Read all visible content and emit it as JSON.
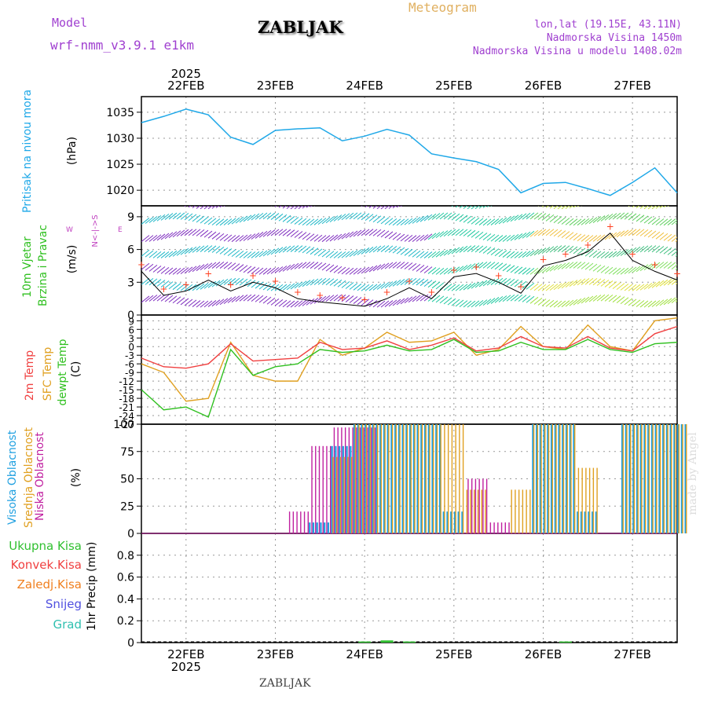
{
  "header": {
    "model_label": "Model",
    "model_name": "wrf-nmm_v3.9.1  e1km",
    "title": "ZABLJAK",
    "meteogram_label": "Meteogram",
    "coords": "lon,lat (19.15E, 43.11N)",
    "elevation": "Nadmorska Visina 1450m",
    "model_elevation": "Nadmorska Visina u modelu 1408.02m",
    "footer_title": "ZABLJAK",
    "watermark": "made by Angel"
  },
  "time_axis": {
    "year": "2025",
    "start": "2025-02-21T12:00",
    "end": "2025-02-27T12:00",
    "days": [
      "22FEB",
      "23FEB",
      "24FEB",
      "25FEB",
      "26FEB",
      "27FEB"
    ]
  },
  "colors": {
    "pressure": "#1fa8e8",
    "temp_2m": "#f04040",
    "sfc_temp": "#e0a020",
    "dewpt": "#30c020",
    "high_cloud": "#20a0e0",
    "mid_cloud": "#e0a020",
    "low_cloud": "#c020a0",
    "total_precip": "#30c030",
    "conv_precip": "#f04040",
    "frozen_precip": "#f08020",
    "snow": "#5050e0",
    "hail": "#30c0b0",
    "wind_gust_marker": "#ff4020"
  },
  "panels": {
    "pressure": {
      "ylabel": "Pritisak na nivou mora",
      "unit": "(hPa)"
    },
    "wind": {
      "ylabel_1": "10m Vjetar",
      "ylabel_2": "Brzina i Pravac",
      "unit": "(m/s)",
      "compass_ns": "N<-|->S",
      "compass_w": "W",
      "compass_e": "E"
    },
    "temperature": {
      "ylabel_1": "2m Temp",
      "ylabel_2": "SFC Temp",
      "ylabel_3": "dewpt Temp",
      "unit": "(C)"
    },
    "cloud": {
      "ylabel_1": "Visoka Oblacnost",
      "ylabel_2": "Srednja Oblacnost",
      "ylabel_3": "Niska Oblacnost",
      "unit": "(%)"
    },
    "precip": {
      "ylabel": "1hr Precip (mm)",
      "legend": [
        "Ukupna Kisa",
        "Konvek.Kisa",
        "Zaledj.Kisa",
        "Snijeg",
        "Grad"
      ]
    }
  },
  "chart_data": [
    {
      "type": "line",
      "name": "pressure",
      "ylim": [
        1017,
        1038
      ],
      "yticks": [
        1020,
        1025,
        1030,
        1035
      ],
      "grid": true,
      "x": [
        "2025-02-21T12:00",
        "2025-02-21T18:00",
        "2025-02-22T00:00",
        "2025-02-22T06:00",
        "2025-02-22T12:00",
        "2025-02-22T18:00",
        "2025-02-23T00:00",
        "2025-02-23T06:00",
        "2025-02-23T12:00",
        "2025-02-23T18:00",
        "2025-02-24T00:00",
        "2025-02-24T06:00",
        "2025-02-24T12:00",
        "2025-02-24T18:00",
        "2025-02-25T00:00",
        "2025-02-25T06:00",
        "2025-02-25T12:00",
        "2025-02-25T18:00",
        "2025-02-26T00:00",
        "2025-02-26T06:00",
        "2025-02-26T12:00",
        "2025-02-26T18:00",
        "2025-02-27T00:00",
        "2025-02-27T06:00",
        "2025-02-27T12:00"
      ],
      "values": [
        1033.0,
        1034.2,
        1035.6,
        1034.5,
        1030.2,
        1028.8,
        1031.5,
        1031.8,
        1032.0,
        1029.5,
        1030.4,
        1031.7,
        1030.6,
        1027.0,
        1026.2,
        1025.5,
        1024.0,
        1019.5,
        1021.3,
        1021.5,
        1020.3,
        1019.0,
        1021.5,
        1024.3,
        1019.5
      ]
    },
    {
      "type": "line",
      "name": "wind_speed",
      "ylim": [
        0,
        10
      ],
      "yticks": [
        0,
        3,
        6,
        9
      ],
      "grid": true,
      "x": [
        "2025-02-21T12:00",
        "2025-02-21T18:00",
        "2025-02-22T00:00",
        "2025-02-22T06:00",
        "2025-02-22T12:00",
        "2025-02-22T18:00",
        "2025-02-23T00:00",
        "2025-02-23T06:00",
        "2025-02-23T12:00",
        "2025-02-23T18:00",
        "2025-02-24T00:00",
        "2025-02-24T06:00",
        "2025-02-24T12:00",
        "2025-02-24T18:00",
        "2025-02-25T00:00",
        "2025-02-25T06:00",
        "2025-02-25T12:00",
        "2025-02-25T18:00",
        "2025-02-26T00:00",
        "2025-02-26T06:00",
        "2025-02-26T12:00",
        "2025-02-26T18:00",
        "2025-02-27T00:00",
        "2025-02-27T06:00",
        "2025-02-27T12:00"
      ],
      "values": [
        4.0,
        1.8,
        2.2,
        3.2,
        2.2,
        3.0,
        2.5,
        1.5,
        1.2,
        1.0,
        0.8,
        1.5,
        2.5,
        1.5,
        3.5,
        3.8,
        3.0,
        2.0,
        4.5,
        5.0,
        5.8,
        7.5,
        5.0,
        4.0,
        3.2
      ]
    },
    {
      "type": "line",
      "name": "temperature",
      "ylim": [
        -27,
        11
      ],
      "yticks": [
        -27,
        -24,
        -21,
        -18,
        -15,
        -12,
        -9,
        -6,
        -3,
        0,
        3,
        6,
        9,
        12
      ],
      "grid": true,
      "x": [
        "2025-02-21T12:00",
        "2025-02-21T18:00",
        "2025-02-22T00:00",
        "2025-02-22T06:00",
        "2025-02-22T12:00",
        "2025-02-22T18:00",
        "2025-02-23T00:00",
        "2025-02-23T06:00",
        "2025-02-23T12:00",
        "2025-02-23T18:00",
        "2025-02-24T00:00",
        "2025-02-24T06:00",
        "2025-02-24T12:00",
        "2025-02-24T18:00",
        "2025-02-25T00:00",
        "2025-02-25T06:00",
        "2025-02-25T12:00",
        "2025-02-25T18:00",
        "2025-02-26T00:00",
        "2025-02-26T06:00",
        "2025-02-26T12:00",
        "2025-02-26T18:00",
        "2025-02-27T00:00",
        "2025-02-27T06:00",
        "2025-02-27T12:00"
      ],
      "series": [
        {
          "name": "2m Temp",
          "values": [
            -4,
            -7,
            -7.5,
            -6,
            1,
            -5,
            -4.5,
            -4,
            1.5,
            -1,
            -0.5,
            2,
            -1,
            0.5,
            3,
            -1.5,
            -0.5,
            3.5,
            0,
            -0.5,
            3.5,
            -0.5,
            -1.5,
            4.5,
            7
          ]
        },
        {
          "name": "SFC Temp",
          "values": [
            -6,
            -9,
            -19,
            -18,
            1.5,
            -10,
            -12,
            -12,
            2.5,
            -3,
            -0.5,
            5,
            1.5,
            2,
            5,
            -3,
            -1,
            7,
            0,
            -1,
            7.5,
            0,
            -1.5,
            9,
            10
          ]
        },
        {
          "name": "dewpt Temp",
          "values": [
            -15,
            -22,
            -21,
            -24.5,
            -1,
            -10,
            -7,
            -6,
            -1,
            -2,
            -1.5,
            0.5,
            -1.5,
            -1,
            2.5,
            -2,
            -1.5,
            1.5,
            -1,
            -1,
            2.5,
            -1,
            -2,
            1,
            1.5
          ]
        }
      ]
    },
    {
      "type": "bar",
      "name": "cloud_cover",
      "ylim": [
        0,
        100
      ],
      "yticks": [
        0,
        25,
        50,
        75,
        100
      ],
      "grid": true,
      "x": [
        "2025-02-23T06:00",
        "2025-02-23T12:00",
        "2025-02-23T18:00",
        "2025-02-24T00:00",
        "2025-02-24T06:00",
        "2025-02-24T12:00",
        "2025-02-24T18:00",
        "2025-02-25T00:00",
        "2025-02-25T06:00",
        "2025-02-25T12:00",
        "2025-02-25T18:00",
        "2025-02-26T00:00",
        "2025-02-26T06:00",
        "2025-02-26T12:00",
        "2025-02-26T18:00",
        "2025-02-27T00:00",
        "2025-02-27T06:00",
        "2025-02-27T12:00"
      ],
      "series": [
        {
          "name": "Visoka Oblacnost",
          "values": [
            0,
            10,
            80,
            100,
            100,
            100,
            100,
            20,
            0,
            0,
            0,
            100,
            100,
            20,
            0,
            100,
            100,
            100
          ]
        },
        {
          "name": "Srednja Oblacnost",
          "values": [
            0,
            0,
            70,
            100,
            100,
            100,
            100,
            100,
            40,
            0,
            40,
            100,
            100,
            60,
            0,
            100,
            100,
            100
          ]
        },
        {
          "name": "Niska Oblacnost",
          "values": [
            20,
            80,
            97,
            97,
            0,
            0,
            0,
            0,
            50,
            10,
            0,
            0,
            0,
            0,
            0,
            0,
            0,
            0
          ]
        }
      ]
    },
    {
      "type": "bar",
      "name": "precip_1hr",
      "ylim": [
        0,
        1.0
      ],
      "yticks": [
        0,
        0.2,
        0.4,
        0.6,
        0.8
      ],
      "grid": true,
      "x": [
        "2025-02-24T00:00",
        "2025-02-24T06:00",
        "2025-02-24T12:00",
        "2025-02-26T06:00"
      ],
      "series": [
        {
          "name": "Ukupna Kisa",
          "values": [
            0.01,
            0.02,
            0.01,
            0.01
          ]
        }
      ]
    }
  ]
}
